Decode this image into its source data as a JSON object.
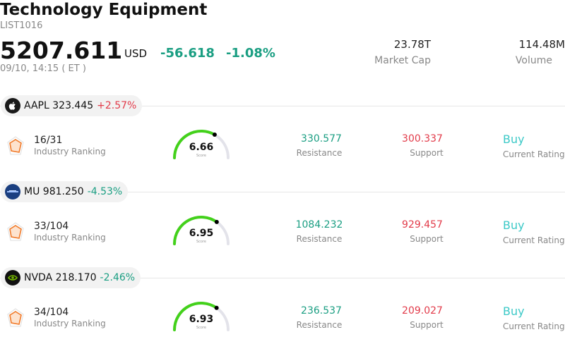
{
  "header": {
    "title": "Technology Equipment",
    "code": "LIST1016",
    "price": "5207.611",
    "currency": "USD",
    "change": "-56.618",
    "change_pct": "-1.08%",
    "timestamp": "09/10, 14:15 ( ET )",
    "market_cap_value": "23.78T",
    "market_cap_label": "Market Cap",
    "volume_value": "114.48M",
    "volume_label": "Volume"
  },
  "colors": {
    "up": "#e23b4a",
    "down": "#1a9e82",
    "rating": "#3cc9c7",
    "gauge": "#43d11b"
  },
  "labels": {
    "industry_ranking": "Industry Ranking",
    "resistance": "Resistance",
    "support": "Support",
    "current_rating": "Current Rating",
    "score": "Score"
  },
  "stocks": [
    {
      "symbol": "AAPL",
      "price": "323.445",
      "change": "+2.57%",
      "logo": "apple-icon",
      "rank": "16/31",
      "score": "6.66",
      "score_value": 6.66,
      "resistance": "330.577",
      "support": "300.337",
      "rating": "Buy"
    },
    {
      "symbol": "MU",
      "price": "981.250",
      "change": "-4.53%",
      "logo": "micron-icon",
      "rank": "33/104",
      "score": "6.95",
      "score_value": 6.95,
      "resistance": "1084.232",
      "support": "929.457",
      "rating": "Buy"
    },
    {
      "symbol": "NVDA",
      "price": "218.170",
      "change": "-2.46%",
      "logo": "nvidia-icon",
      "rank": "34/104",
      "score": "6.93",
      "score_value": 6.93,
      "resistance": "236.537",
      "support": "209.027",
      "rating": "Buy"
    }
  ]
}
